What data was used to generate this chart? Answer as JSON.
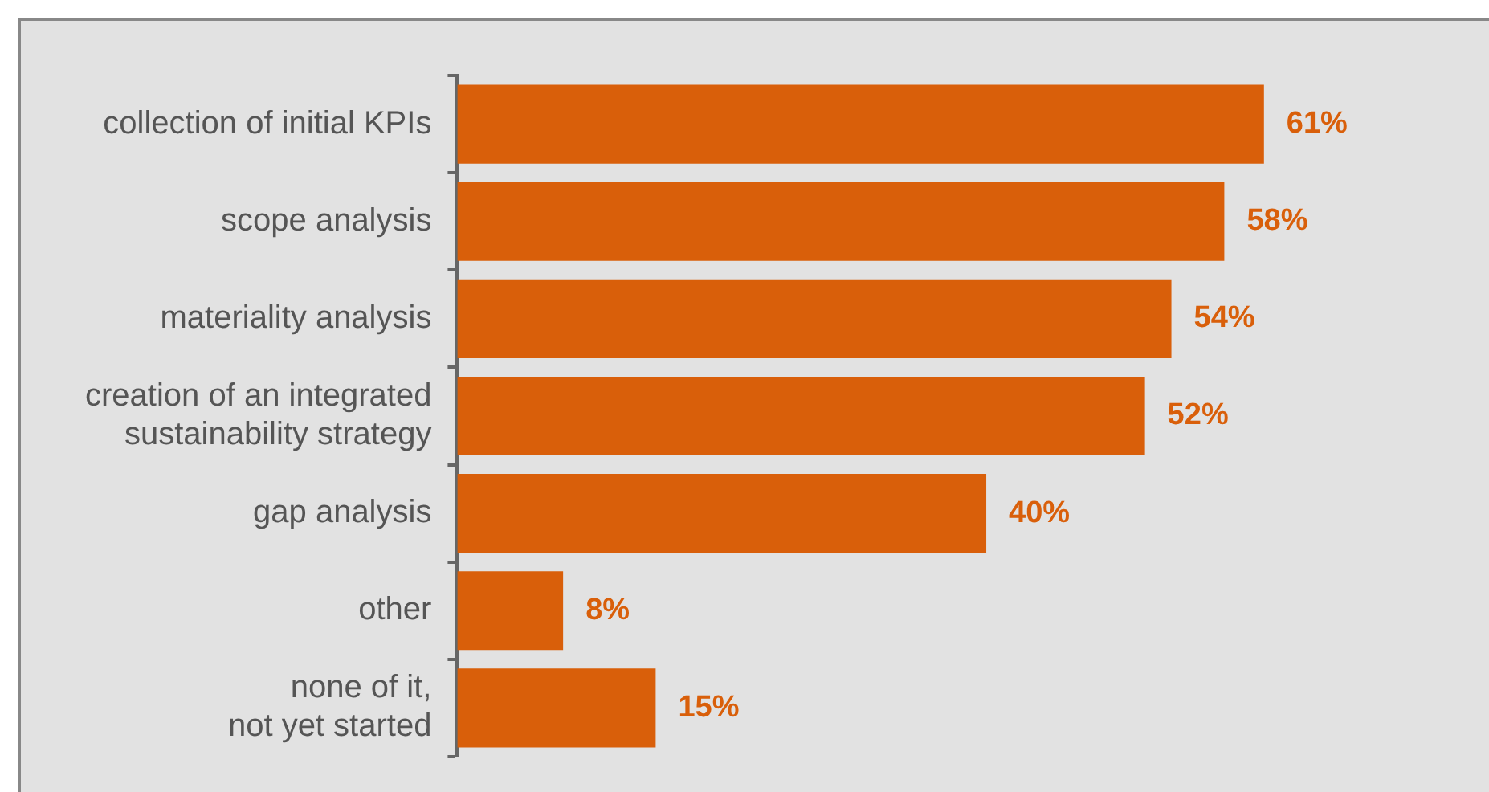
{
  "chart_data": {
    "type": "bar",
    "orientation": "horizontal",
    "categories": [
      "collection of initial KPIs",
      "scope analysis",
      "materiality analysis",
      "creation of an integrated\nsustainability strategy",
      "gap analysis",
      "other",
      "none of it,\nnot yet started"
    ],
    "values": [
      61,
      58,
      54,
      52,
      40,
      8,
      15
    ],
    "value_labels": [
      "61%",
      "58%",
      "54%",
      "52%",
      "40%",
      "8%",
      "15%"
    ],
    "color": "#d95f0a",
    "tick_labels": "y",
    "grid": false,
    "legend": false
  }
}
